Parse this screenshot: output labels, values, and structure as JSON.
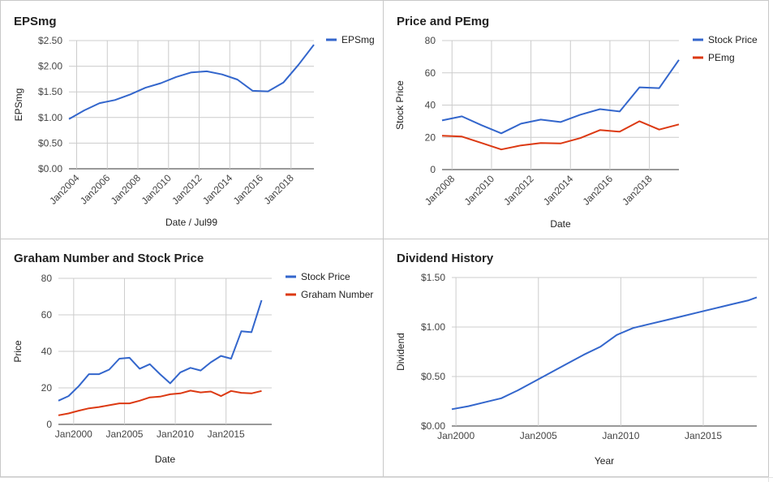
{
  "chart_data": [
    {
      "id": "epsmg",
      "type": "line",
      "title": "EPSmg",
      "xlabel": "Date / Jul99",
      "ylabel": "EPSmg",
      "x_type": "date",
      "x_ticks": [
        "2004-01-01",
        "2006-01-01",
        "2008-01-01",
        "2010-01-01",
        "2012-01-01",
        "2014-01-01",
        "2016-01-01",
        "2018-01-01"
      ],
      "x_tick_labels": [
        "Jan2004",
        "Jan2006",
        "Jan2008",
        "Jan2010",
        "Jan2012",
        "Jan2014",
        "Jan2016",
        "Jan2018"
      ],
      "xlim": [
        "2003-07-01",
        "2019-07-01"
      ],
      "ylim": [
        0,
        2.5
      ],
      "y_ticks": [
        0,
        0.5,
        1,
        1.5,
        2,
        2.5
      ],
      "y_tick_labels": [
        "$0.00",
        "$0.50",
        "$1.00",
        "$1.50",
        "$2.00",
        "$2.50"
      ],
      "legend_position": "right",
      "grid": true,
      "series": [
        {
          "name": "EPSmg",
          "color": "#3366cc",
          "points": [
            [
              "2003-07-01",
              0.97
            ],
            [
              "2004-07-01",
              1.14
            ],
            [
              "2005-07-01",
              1.28
            ],
            [
              "2006-07-01",
              1.34
            ],
            [
              "2007-07-01",
              1.45
            ],
            [
              "2008-07-01",
              1.58
            ],
            [
              "2009-07-01",
              1.67
            ],
            [
              "2010-07-01",
              1.79
            ],
            [
              "2011-07-01",
              1.88
            ],
            [
              "2012-07-01",
              1.9
            ],
            [
              "2013-07-01",
              1.84
            ],
            [
              "2014-07-01",
              1.74
            ],
            [
              "2015-07-01",
              1.52
            ],
            [
              "2016-07-01",
              1.51
            ],
            [
              "2017-07-01",
              1.68
            ],
            [
              "2018-07-01",
              2.03
            ],
            [
              "2019-07-01",
              2.42
            ]
          ]
        }
      ]
    },
    {
      "id": "pe",
      "type": "line",
      "title": "Price and PEmg",
      "xlabel": "Date",
      "ylabel": "Stock Price",
      "x_type": "date",
      "x_ticks": [
        "2008-01-01",
        "2010-01-01",
        "2012-01-01",
        "2014-01-01",
        "2016-01-01",
        "2018-01-01"
      ],
      "x_tick_labels": [
        "Jan2008",
        "Jan2010",
        "Jan2012",
        "Jan2014",
        "Jan2016",
        "Jan2018"
      ],
      "xlim": [
        "2007-07-01",
        "2019-07-01"
      ],
      "ylim": [
        0,
        80
      ],
      "y_ticks": [
        0,
        20,
        40,
        60,
        80
      ],
      "y_tick_labels": [
        "0",
        "20",
        "40",
        "60",
        "80"
      ],
      "legend_position": "right",
      "grid": true,
      "series": [
        {
          "name": "Stock Price",
          "color": "#3366cc",
          "points": [
            [
              "2007-07-01",
              30.5
            ],
            [
              "2008-07-01",
              33
            ],
            [
              "2009-07-01",
              27.5
            ],
            [
              "2010-07-01",
              22.5
            ],
            [
              "2011-07-01",
              28.5
            ],
            [
              "2012-07-01",
              31
            ],
            [
              "2013-07-01",
              29.5
            ],
            [
              "2014-07-01",
              34
            ],
            [
              "2015-07-01",
              37.5
            ],
            [
              "2016-07-01",
              36
            ],
            [
              "2017-07-01",
              51
            ],
            [
              "2018-07-01",
              50.5
            ],
            [
              "2019-07-01",
              68
            ]
          ]
        },
        {
          "name": "PEmg",
          "color": "#dc3912",
          "points": [
            [
              "2007-07-01",
              21
            ],
            [
              "2008-07-01",
              20.5
            ],
            [
              "2009-07-01",
              16.5
            ],
            [
              "2010-07-01",
              12.5
            ],
            [
              "2011-07-01",
              15
            ],
            [
              "2012-07-01",
              16.5
            ],
            [
              "2013-07-01",
              16.2
            ],
            [
              "2014-07-01",
              19.5
            ],
            [
              "2015-07-01",
              24.5
            ],
            [
              "2016-07-01",
              23.5
            ],
            [
              "2017-07-01",
              30
            ],
            [
              "2018-07-01",
              24.8
            ],
            [
              "2019-07-01",
              28
            ]
          ]
        }
      ]
    },
    {
      "id": "graham",
      "type": "line",
      "title": "Graham Number and Stock Price",
      "xlabel": "Date",
      "ylabel": "Price",
      "x_type": "date",
      "x_ticks": [
        "2000-01-01",
        "2005-01-01",
        "2010-01-01",
        "2015-01-01"
      ],
      "x_tick_labels": [
        "Jan2000",
        "Jan2005",
        "Jan2010",
        "Jan2015"
      ],
      "xlim": [
        "1998-07-01",
        "2019-07-01"
      ],
      "ylim": [
        0,
        80
      ],
      "y_ticks": [
        0,
        20,
        40,
        60,
        80
      ],
      "y_tick_labels": [
        "0",
        "20",
        "40",
        "60",
        "80"
      ],
      "legend_position": "right",
      "grid": true,
      "series": [
        {
          "name": "Stock Price",
          "color": "#3366cc",
          "points": [
            [
              "1998-07-01",
              13
            ],
            [
              "1999-07-01",
              15.5
            ],
            [
              "2000-07-01",
              21
            ],
            [
              "2001-07-01",
              27.5
            ],
            [
              "2002-07-01",
              27.5
            ],
            [
              "2003-07-01",
              30
            ],
            [
              "2004-07-01",
              36
            ],
            [
              "2005-07-01",
              36.5
            ],
            [
              "2006-07-01",
              30.5
            ],
            [
              "2007-07-01",
              33
            ],
            [
              "2008-07-01",
              27.5
            ],
            [
              "2009-07-01",
              22.5
            ],
            [
              "2010-07-01",
              28.5
            ],
            [
              "2011-07-01",
              31
            ],
            [
              "2012-07-01",
              29.5
            ],
            [
              "2013-07-01",
              34
            ],
            [
              "2014-07-01",
              37.5
            ],
            [
              "2015-07-01",
              36
            ],
            [
              "2016-07-01",
              51
            ],
            [
              "2017-07-01",
              50.5
            ],
            [
              "2018-07-01",
              68
            ]
          ]
        },
        {
          "name": "Graham Number",
          "color": "#dc3912",
          "points": [
            [
              "1998-07-01",
              5
            ],
            [
              "1999-07-01",
              6
            ],
            [
              "2000-07-01",
              7.5
            ],
            [
              "2001-07-01",
              8.8
            ],
            [
              "2002-07-01",
              9.5
            ],
            [
              "2003-07-01",
              10.5
            ],
            [
              "2004-07-01",
              11.5
            ],
            [
              "2005-07-01",
              11.5
            ],
            [
              "2006-07-01",
              13
            ],
            [
              "2007-07-01",
              14.8
            ],
            [
              "2008-07-01",
              15.2
            ],
            [
              "2009-07-01",
              16.5
            ],
            [
              "2010-07-01",
              17
            ],
            [
              "2011-07-01",
              18.5
            ],
            [
              "2012-07-01",
              17.5
            ],
            [
              "2013-07-01",
              18
            ],
            [
              "2014-07-01",
              15.5
            ],
            [
              "2015-07-01",
              18.3
            ],
            [
              "2016-07-01",
              17.3
            ],
            [
              "2017-07-01",
              17
            ],
            [
              "2018-07-01",
              18.3
            ]
          ]
        }
      ]
    },
    {
      "id": "dividend",
      "type": "line",
      "title": "Dividend History",
      "xlabel": "Year",
      "ylabel": "Dividend",
      "x_type": "date",
      "x_ticks": [
        "2000-01-01",
        "2005-01-01",
        "2010-01-01",
        "2015-01-01"
      ],
      "x_tick_labels": [
        "Jan2000",
        "Jan2005",
        "Jan2010",
        "Jan2015"
      ],
      "xlim": [
        "1999-10-01",
        "2018-04-01"
      ],
      "ylim": [
        0,
        1.5
      ],
      "y_ticks": [
        0,
        0.5,
        1,
        1.5
      ],
      "y_tick_labels": [
        "$0.00",
        "$0.50",
        "$1.00",
        "$1.50"
      ],
      "legend_position": "none",
      "grid": true,
      "series": [
        {
          "name": "",
          "color": "#3366cc",
          "points": [
            [
              "1999-10-01",
              0.17
            ],
            [
              "2000-10-01",
              0.2
            ],
            [
              "2001-10-01",
              0.24
            ],
            [
              "2002-10-01",
              0.28
            ],
            [
              "2003-10-01",
              0.36
            ],
            [
              "2004-10-01",
              0.45
            ],
            [
              "2005-10-01",
              0.54
            ],
            [
              "2006-10-01",
              0.63
            ],
            [
              "2007-10-01",
              0.72
            ],
            [
              "2008-10-01",
              0.8
            ],
            [
              "2009-10-01",
              0.92
            ],
            [
              "2010-10-01",
              0.99
            ],
            [
              "2011-10-01",
              1.03
            ],
            [
              "2012-10-01",
              1.07
            ],
            [
              "2013-10-01",
              1.11
            ],
            [
              "2014-10-01",
              1.15
            ],
            [
              "2015-10-01",
              1.19
            ],
            [
              "2016-10-01",
              1.23
            ],
            [
              "2017-10-01",
              1.27
            ],
            [
              "2018-04-01",
              1.3
            ]
          ]
        }
      ]
    }
  ]
}
